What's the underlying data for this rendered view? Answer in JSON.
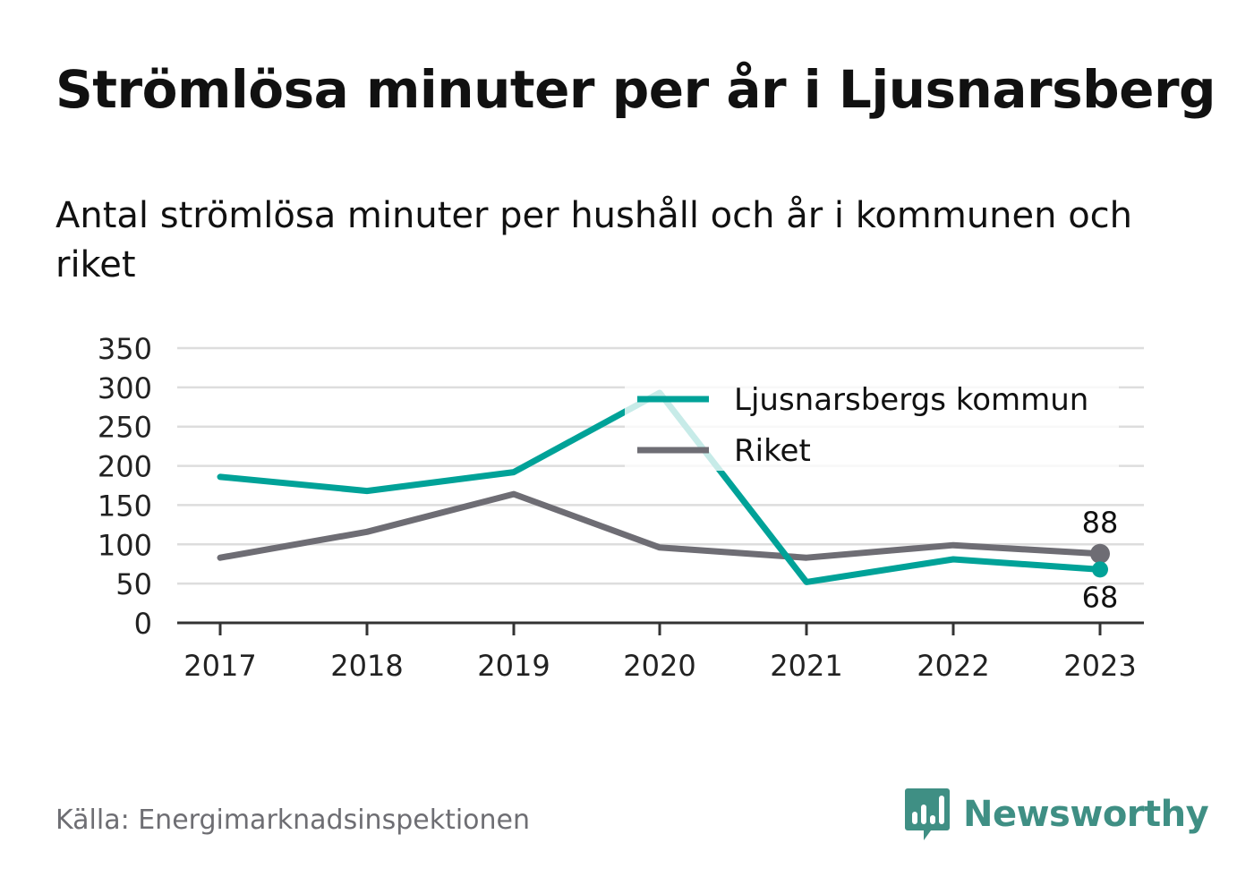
{
  "title": "Strömlösa minuter per år i Ljusnarsberg",
  "subtitle": "Antal strömlösa minuter per hushåll och år i kommunen och riket",
  "source": "Källa: Energimarknadsinspektionen",
  "brand": {
    "name": "Newsworthy",
    "icon": "newsworthy-logo-icon",
    "color": "#3f8f84"
  },
  "colors": {
    "kommun": "#00a298",
    "riket": "#6e6d74",
    "grid": "#dddddd",
    "axis": "#333333"
  },
  "chart_data": {
    "type": "line",
    "title": "Strömlösa minuter per år i Ljusnarsberg",
    "subtitle": "Antal strömlösa minuter per hushåll och år i kommunen och riket",
    "x": [
      "2017",
      "2018",
      "2019",
      "2020",
      "2021",
      "2022",
      "2023"
    ],
    "series": [
      {
        "name": "Ljusnarsbergs kommun",
        "color": "#00a298",
        "values": [
          186,
          168,
          192,
          293,
          52,
          81,
          68
        ]
      },
      {
        "name": "Riket",
        "color": "#6e6d74",
        "values": [
          83,
          116,
          164,
          96,
          83,
          99,
          88
        ]
      }
    ],
    "end_labels": [
      "68",
      "88"
    ],
    "yticks": [
      "0",
      "50",
      "100",
      "150",
      "200",
      "250",
      "300",
      "350"
    ],
    "ylim": [
      0,
      350
    ],
    "xlabel": "",
    "ylabel": "",
    "grid": true,
    "legend": "top-right"
  }
}
